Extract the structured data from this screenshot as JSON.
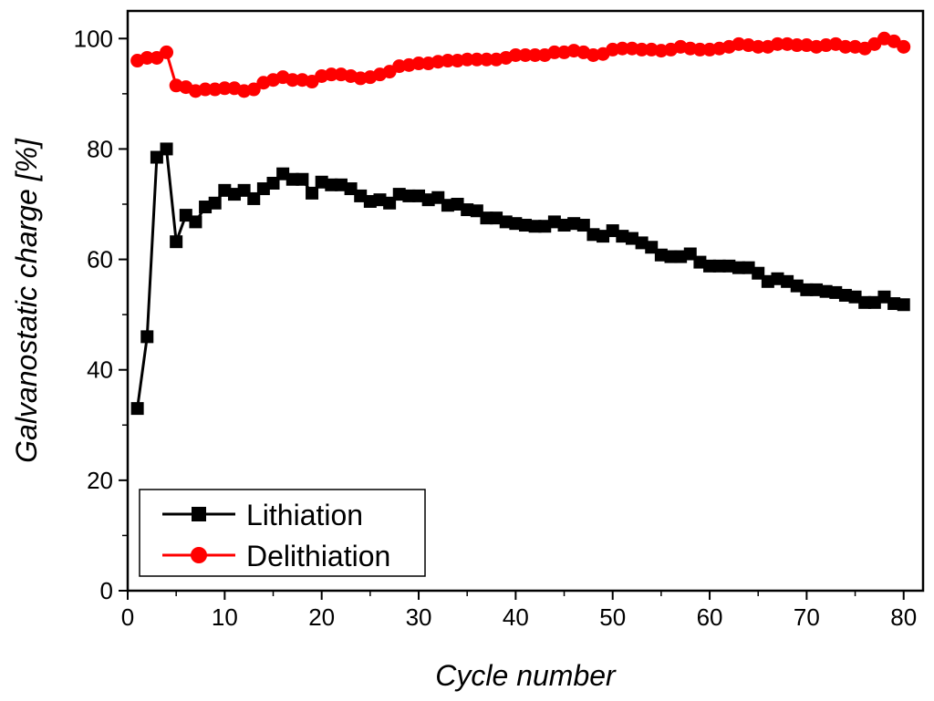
{
  "chart_data": {
    "type": "line",
    "title": "",
    "xlabel": "Cycle number",
    "ylabel": "Galvanostatic charge [%]",
    "xlim": [
      0,
      82
    ],
    "ylim": [
      0,
      105
    ],
    "xticks": [
      0,
      10,
      20,
      30,
      40,
      50,
      60,
      70,
      80
    ],
    "yticks": [
      0,
      20,
      40,
      60,
      80,
      100
    ],
    "grid": false,
    "legend_position": "bottom-left",
    "series": [
      {
        "name": "Lithiation",
        "color": "#000000",
        "marker": "square",
        "x": [
          1,
          2,
          3,
          4,
          5,
          6,
          7,
          8,
          9,
          10,
          11,
          12,
          13,
          14,
          15,
          16,
          17,
          18,
          19,
          20,
          21,
          22,
          23,
          24,
          25,
          26,
          27,
          28,
          29,
          30,
          31,
          32,
          33,
          34,
          35,
          36,
          37,
          38,
          39,
          40,
          41,
          42,
          43,
          44,
          45,
          46,
          47,
          48,
          49,
          50,
          51,
          52,
          53,
          54,
          55,
          56,
          57,
          58,
          59,
          60,
          61,
          62,
          63,
          64,
          65,
          66,
          67,
          68,
          69,
          70,
          71,
          72,
          73,
          74,
          75,
          76,
          77,
          78,
          79,
          80
        ],
        "y": [
          33,
          46,
          78.5,
          80,
          63.2,
          68,
          66.8,
          69.5,
          70.2,
          72.5,
          71.8,
          72.5,
          71,
          72.8,
          73.8,
          75.5,
          74.5,
          74.5,
          72,
          74,
          73.5,
          73.5,
          72.8,
          71.5,
          70.5,
          70.8,
          70.2,
          71.8,
          71.5,
          71.5,
          70.8,
          71.2,
          69.8,
          70,
          69,
          68.8,
          67.5,
          67.5,
          66.8,
          66.5,
          66.2,
          66,
          66,
          66.8,
          66.2,
          66.5,
          66.2,
          64.5,
          64.2,
          65.2,
          64.2,
          63.8,
          63,
          62.2,
          60.8,
          60.5,
          60.5,
          61,
          59.5,
          58.8,
          58.8,
          58.8,
          58.5,
          58.5,
          57.5,
          56,
          56.5,
          56,
          55.2,
          54.5,
          54.5,
          54.2,
          54,
          53.5,
          53.2,
          52.2,
          52.2,
          53.2,
          52,
          51.8
        ]
      },
      {
        "name": "Delithiation",
        "color": "#ff0000",
        "marker": "circle",
        "x": [
          1,
          2,
          3,
          4,
          5,
          6,
          7,
          8,
          9,
          10,
          11,
          12,
          13,
          14,
          15,
          16,
          17,
          18,
          19,
          20,
          21,
          22,
          23,
          24,
          25,
          26,
          27,
          28,
          29,
          30,
          31,
          32,
          33,
          34,
          35,
          36,
          37,
          38,
          39,
          40,
          41,
          42,
          43,
          44,
          45,
          46,
          47,
          48,
          49,
          50,
          51,
          52,
          53,
          54,
          55,
          56,
          57,
          58,
          59,
          60,
          61,
          62,
          63,
          64,
          65,
          66,
          67,
          68,
          69,
          70,
          71,
          72,
          73,
          74,
          75,
          76,
          77,
          78,
          79,
          80
        ],
        "y": [
          96,
          96.5,
          96.5,
          97.5,
          91.5,
          91.2,
          90.5,
          90.8,
          90.8,
          91,
          91,
          90.5,
          90.8,
          92,
          92.5,
          93,
          92.5,
          92.5,
          92.2,
          93.2,
          93.5,
          93.5,
          93.2,
          92.8,
          93,
          93.5,
          94,
          95,
          95.2,
          95.5,
          95.5,
          95.8,
          96,
          96,
          96.2,
          96.2,
          96.2,
          96.2,
          96.5,
          97,
          97,
          97,
          97,
          97.5,
          97.5,
          97.8,
          97.5,
          97,
          97.2,
          98,
          98.2,
          98.2,
          98,
          98,
          97.8,
          98,
          98.5,
          98.2,
          98,
          98,
          98.2,
          98.5,
          99,
          98.8,
          98.5,
          98.5,
          99,
          99,
          98.8,
          98.8,
          98.5,
          98.8,
          99,
          98.5,
          98.5,
          98.2,
          99,
          100,
          99.5,
          98.5
        ]
      }
    ]
  }
}
